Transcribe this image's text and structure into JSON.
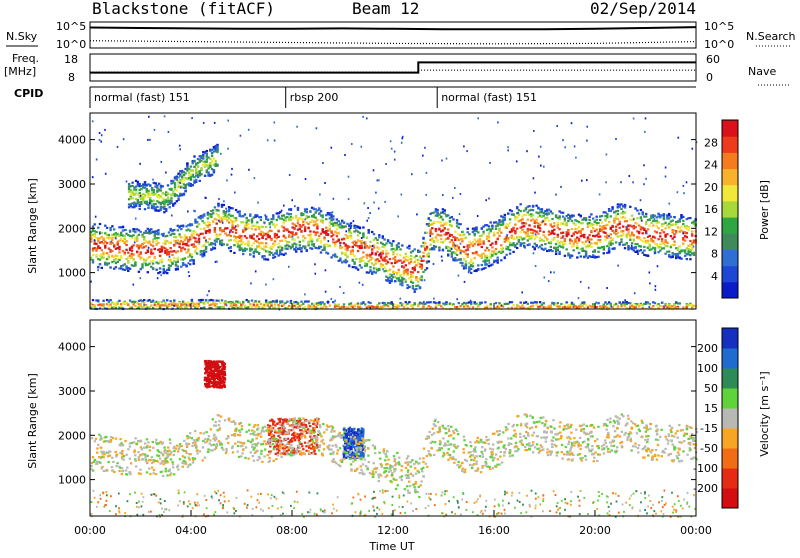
{
  "header": {
    "station": "Blackstone (fitACF)",
    "beam": "Beam 12",
    "date": "02/Sep/2014"
  },
  "noise_panel": {
    "left_label": "N.Sky",
    "right_label": "N.Search",
    "tick_top": "10^5",
    "tick_bottom": "10^0"
  },
  "freq_panel": {
    "left_label_1": "Freq.",
    "left_label_2": "[MHz]",
    "left_ticks": [
      "18",
      "8"
    ],
    "right_ticks": [
      "60",
      "0"
    ],
    "right_label": "Nave"
  },
  "cpid_panel": {
    "label": "CPID",
    "segments": [
      {
        "start": 0.0,
        "text": "normal (fast) 151"
      },
      {
        "start": 7.75,
        "text": "rbsp 200"
      },
      {
        "start": 13.75,
        "text": "normal (fast) 151"
      }
    ]
  },
  "power_colorbar": {
    "label": "Power [dB]",
    "ticks": [
      "4",
      "8",
      "12",
      "16",
      "20",
      "24",
      "28"
    ],
    "colors": [
      "#0a1cc8",
      "#1f47d6",
      "#2f6fd1",
      "#3f8a5a",
      "#2fa544",
      "#a7d93a",
      "#f2e83a",
      "#f8b22b",
      "#f47c1f",
      "#ee3b1c",
      "#d9111a"
    ]
  },
  "velocity_colorbar": {
    "label": "Velocity [m s⁻¹]",
    "ticks": [
      "200",
      "100",
      "50",
      "15",
      "-15",
      "-50",
      "-100",
      "-200"
    ],
    "colors": [
      "#1530c0",
      "#1f6bd0",
      "#2e8b57",
      "#5fd33a",
      "#b9b9b3",
      "#f6a623",
      "#f26c16",
      "#e62b14",
      "#d30e12"
    ]
  },
  "axes": {
    "ylabel": "Slant Range [km]",
    "yticks": [
      "1000",
      "2000",
      "3000",
      "4000"
    ],
    "xticks": [
      "00:00",
      "04:00",
      "08:00",
      "12:00",
      "16:00",
      "20:00",
      "00:00"
    ],
    "xlabel": "Time UT"
  },
  "chart_data": {
    "type": "heatmap",
    "title": "Blackstone (fitACF) Beam 12 02/Sep/2014",
    "xlabel": "Time UT",
    "ylabel": "Slant Range [km]",
    "xlim_hours": [
      0,
      24
    ],
    "ylim_km": [
      180,
      4600
    ],
    "noise": {
      "sky_log10": [
        [
          0,
          4.2
        ],
        [
          2,
          4.1
        ],
        [
          4,
          4.0
        ],
        [
          6,
          3.9
        ],
        [
          8,
          3.9
        ],
        [
          10,
          4.0
        ],
        [
          12,
          3.9
        ],
        [
          14,
          3.8
        ],
        [
          16,
          3.8
        ],
        [
          18,
          3.8
        ],
        [
          20,
          3.9
        ],
        [
          22,
          4.1
        ],
        [
          24,
          4.3
        ]
      ],
      "search_log10": [
        [
          0,
          1.2
        ],
        [
          4,
          1.0
        ],
        [
          8,
          0.8
        ],
        [
          12,
          0.6
        ],
        [
          16,
          0.5
        ],
        [
          20,
          0.6
        ],
        [
          24,
          1.0
        ]
      ]
    },
    "frequency_mhz": [
      [
        0,
        10.8
      ],
      [
        13.0,
        10.8
      ],
      [
        13.0,
        15.2
      ],
      [
        24,
        15.2
      ]
    ],
    "nave": [
      [
        0,
        18
      ],
      [
        13.0,
        18
      ],
      [
        13.0,
        23
      ],
      [
        24,
        23
      ]
    ],
    "power_bands": [
      {
        "name": "main echo band",
        "points": [
          [
            0,
            1650
          ],
          [
            1.5,
            1550
          ],
          [
            3,
            1500
          ],
          [
            4,
            1700
          ],
          [
            5,
            2100
          ],
          [
            6,
            1900
          ],
          [
            7,
            1800
          ],
          [
            8,
            2000
          ],
          [
            9,
            2000
          ],
          [
            10,
            1700
          ],
          [
            11,
            1500
          ],
          [
            12,
            1250
          ],
          [
            13,
            1050
          ],
          [
            13.5,
            2000
          ],
          [
            14,
            1950
          ],
          [
            15,
            1500
          ],
          [
            16,
            1700
          ],
          [
            17,
            2100
          ],
          [
            18,
            2000
          ],
          [
            19,
            1850
          ],
          [
            20,
            1850
          ],
          [
            21,
            2100
          ],
          [
            22,
            1900
          ],
          [
            23,
            1850
          ],
          [
            24,
            1800
          ]
        ],
        "peak_db": 28
      },
      {
        "name": "upper patch",
        "points": [
          [
            1.5,
            2800
          ],
          [
            3,
            2700
          ],
          [
            4,
            3300
          ],
          [
            5,
            3600
          ]
        ],
        "peak_db": 16
      },
      {
        "name": "near-range ground",
        "points": [
          [
            0,
            300
          ],
          [
            6,
            300
          ],
          [
            10,
            250
          ],
          [
            24,
            250
          ]
        ],
        "peak_db": 24
      }
    ],
    "velocity_regions": [
      {
        "name": "westward patch",
        "time_hours": [
          7,
          9
        ],
        "range_km": [
          1600,
          2400
        ],
        "velocity_ms": -100
      },
      {
        "name": "positive burst",
        "time_hours": [
          10,
          10.8
        ],
        "range_km": [
          1500,
          2200
        ],
        "velocity_ms": 150
      },
      {
        "name": "near zero band",
        "time_hours": [
          0,
          24
        ],
        "range_km": [
          1400,
          2400
        ],
        "velocity_ms": 0
      },
      {
        "name": "high-range strong negative",
        "time_hours": [
          4.5,
          5.3
        ],
        "range_km": [
          3100,
          3700
        ],
        "velocity_ms": -200
      }
    ]
  }
}
